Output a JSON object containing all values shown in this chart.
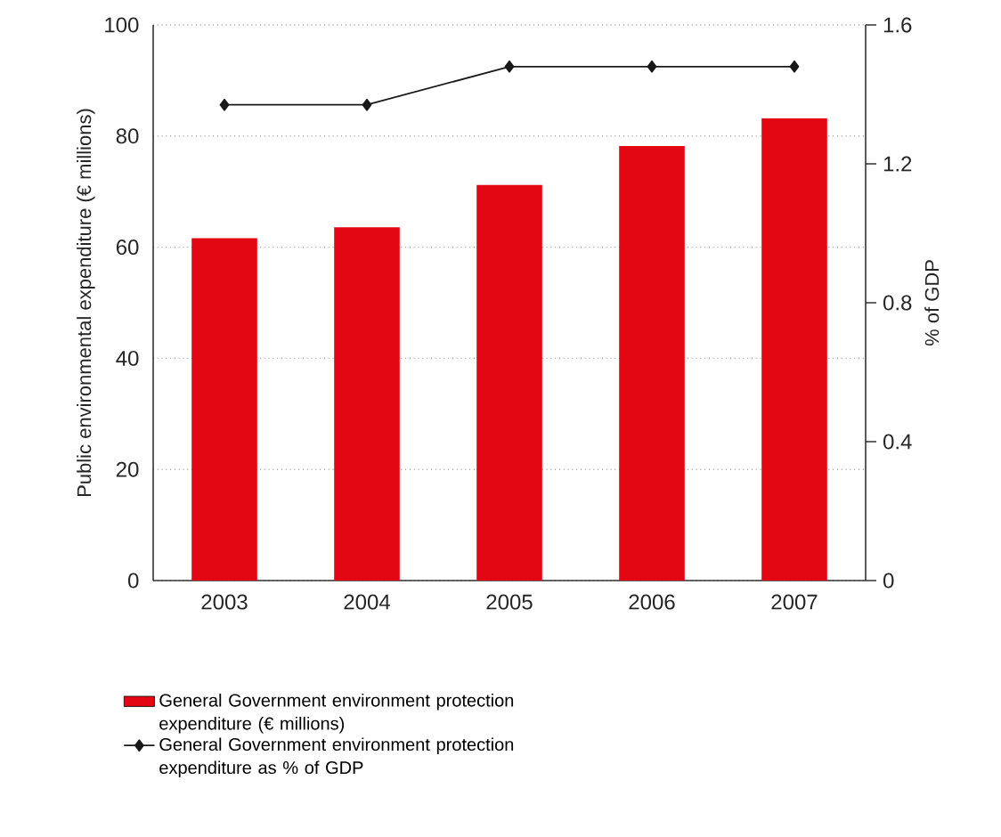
{
  "chart_data": {
    "type": "bar",
    "ylabel": "Public environmental expenditure (€ millions)",
    "y2label": "% of GDP",
    "categories": [
      "2003",
      "2004",
      "2005",
      "2006",
      "2007"
    ],
    "series": [
      {
        "name": "General Government environment protection expenditure (€ millions)",
        "color": "#e30613",
        "values": [
          61.6,
          63.6,
          71.2,
          78.2,
          83.2
        ]
      },
      {
        "name": "General Government environment protection expenditure as % of GDP",
        "type": "line",
        "axis": "y2",
        "color": "#1a1a1a",
        "marker": "diamond",
        "values": [
          1.37,
          1.37,
          1.48,
          1.48,
          1.48
        ]
      }
    ],
    "ylim": [
      0,
      100
    ],
    "yticks": [
      0,
      20,
      40,
      60,
      80,
      100
    ],
    "y2lim": [
      0,
      1.6
    ],
    "y2ticks": [
      0,
      {
        "value": 0.4,
        "label": "0.4"
      },
      {
        "value": 0.8,
        "label": "0.8"
      },
      {
        "value": 1.2,
        "label": "1.2"
      },
      {
        "value": 1.6,
        "label": "1.6"
      }
    ],
    "grid": "y",
    "legend": "bottom"
  }
}
